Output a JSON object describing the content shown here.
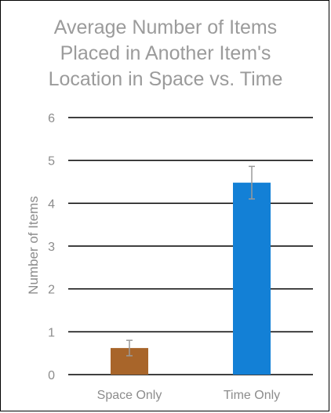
{
  "chart_data": {
    "type": "bar",
    "title_lines": [
      "Average Number of Items",
      "Placed in Another Item's",
      "Location in Space vs. Time"
    ],
    "xlabel": "",
    "ylabel": "Number of Items",
    "categories": [
      "Space Only",
      "Time Only"
    ],
    "values": [
      0.62,
      4.48
    ],
    "error": [
      0.18,
      0.38
    ],
    "bar_colors": [
      "#a8652a",
      "#1380d6"
    ],
    "ylim": [
      0,
      6
    ],
    "yticks": [
      "0",
      "1",
      "2",
      "3",
      "4",
      "5",
      "6"
    ],
    "grid": true,
    "legend": "none"
  },
  "colors": {
    "title": "#9b9b9b",
    "tick_label": "#8c8c8c",
    "gridline": "#000000",
    "error_bar": "#9a9a9a",
    "border": "#000000"
  }
}
